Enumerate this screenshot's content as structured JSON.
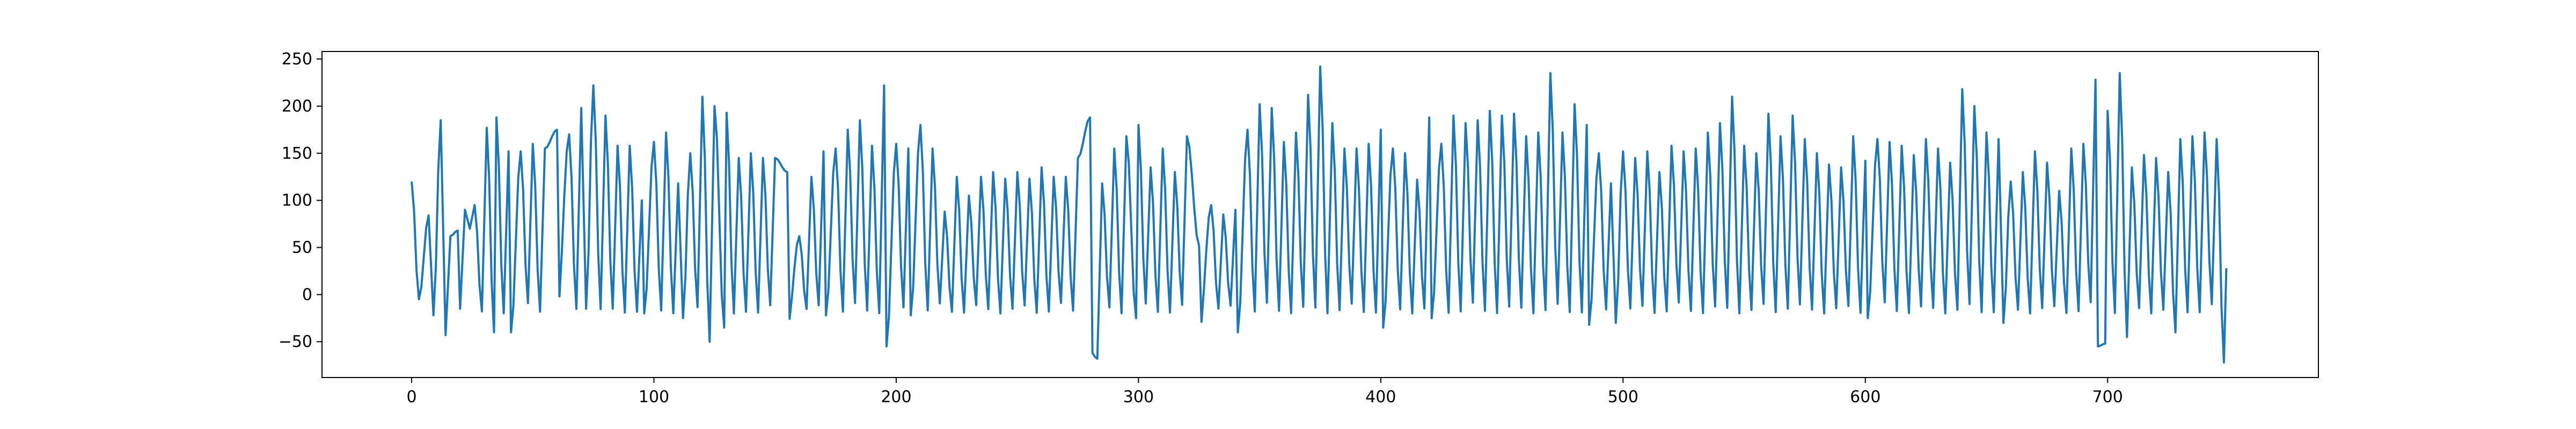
{
  "chart_data": {
    "type": "line",
    "title": "",
    "xlabel": "",
    "ylabel": "",
    "xlim": [
      -37,
      787
    ],
    "ylim": [
      -88,
      258
    ],
    "xticks": [
      0,
      100,
      200,
      300,
      400,
      500,
      600,
      700
    ],
    "yticks": [
      -50,
      0,
      50,
      100,
      150,
      200,
      250
    ],
    "xtick_labels": [
      "0",
      "100",
      "200",
      "300",
      "400",
      "500",
      "600",
      "700"
    ],
    "ytick_labels": [
      "−50",
      "0",
      "50",
      "100",
      "150",
      "200",
      "250"
    ],
    "grid": false,
    "legend": "none",
    "series": [
      {
        "color": "#1f77b4",
        "n_points": 750,
        "start": 120,
        "end": 28,
        "peaks": [
          [
            7,
            84
          ],
          [
            12,
            185
          ],
          [
            16,
            62
          ],
          [
            19,
            68
          ],
          [
            22,
            90
          ],
          [
            24,
            70
          ],
          [
            26,
            95
          ],
          [
            31,
            177
          ],
          [
            35,
            188
          ],
          [
            40,
            152
          ],
          [
            45,
            152
          ],
          [
            50,
            160
          ],
          [
            55,
            155
          ],
          [
            60,
            175
          ],
          [
            65,
            170
          ],
          [
            70,
            198
          ],
          [
            75,
            222
          ],
          [
            80,
            190
          ],
          [
            85,
            158
          ],
          [
            90,
            158
          ],
          [
            95,
            100
          ],
          [
            100,
            162
          ],
          [
            105,
            172
          ],
          [
            110,
            118
          ],
          [
            115,
            150
          ],
          [
            120,
            210
          ],
          [
            125,
            200
          ],
          [
            130,
            193
          ],
          [
            135,
            145
          ],
          [
            140,
            150
          ],
          [
            145,
            145
          ],
          [
            150,
            145
          ],
          [
            155,
            130
          ],
          [
            160,
            62
          ],
          [
            165,
            125
          ],
          [
            170,
            152
          ],
          [
            175,
            155
          ],
          [
            180,
            175
          ],
          [
            185,
            185
          ],
          [
            190,
            158
          ],
          [
            195,
            222
          ],
          [
            200,
            160
          ],
          [
            205,
            155
          ],
          [
            210,
            180
          ],
          [
            215,
            155
          ],
          [
            220,
            88
          ],
          [
            225,
            125
          ],
          [
            230,
            105
          ],
          [
            235,
            125
          ],
          [
            240,
            130
          ],
          [
            245,
            123
          ],
          [
            250,
            130
          ],
          [
            255,
            123
          ],
          [
            260,
            135
          ],
          [
            265,
            125
          ],
          [
            270,
            125
          ],
          [
            275,
            145
          ],
          [
            280,
            188
          ],
          [
            285,
            118
          ],
          [
            290,
            155
          ],
          [
            295,
            168
          ],
          [
            300,
            180
          ],
          [
            305,
            135
          ],
          [
            310,
            155
          ],
          [
            315,
            130
          ],
          [
            320,
            168
          ],
          [
            325,
            52
          ],
          [
            330,
            95
          ],
          [
            335,
            85
          ],
          [
            340,
            90
          ],
          [
            345,
            175
          ],
          [
            350,
            202
          ],
          [
            355,
            198
          ],
          [
            360,
            162
          ],
          [
            365,
            172
          ],
          [
            370,
            212
          ],
          [
            375,
            242
          ],
          [
            380,
            182
          ],
          [
            385,
            155
          ],
          [
            390,
            155
          ],
          [
            395,
            160
          ],
          [
            400,
            175
          ],
          [
            405,
            155
          ],
          [
            410,
            150
          ],
          [
            415,
            122
          ],
          [
            420,
            188
          ],
          [
            425,
            160
          ],
          [
            430,
            190
          ],
          [
            435,
            182
          ],
          [
            440,
            185
          ],
          [
            445,
            195
          ],
          [
            450,
            190
          ],
          [
            455,
            192
          ],
          [
            460,
            168
          ],
          [
            465,
            172
          ],
          [
            470,
            235
          ],
          [
            475,
            172
          ],
          [
            480,
            202
          ],
          [
            485,
            180
          ],
          [
            490,
            150
          ],
          [
            495,
            118
          ],
          [
            500,
            152
          ],
          [
            505,
            145
          ],
          [
            510,
            152
          ],
          [
            515,
            130
          ],
          [
            520,
            158
          ],
          [
            525,
            152
          ],
          [
            530,
            155
          ],
          [
            535,
            172
          ],
          [
            540,
            182
          ],
          [
            545,
            210
          ],
          [
            550,
            158
          ],
          [
            555,
            150
          ],
          [
            560,
            192
          ],
          [
            565,
            168
          ],
          [
            570,
            190
          ],
          [
            575,
            165
          ],
          [
            580,
            150
          ],
          [
            585,
            138
          ],
          [
            590,
            135
          ],
          [
            595,
            168
          ],
          [
            600,
            142
          ],
          [
            605,
            165
          ],
          [
            610,
            162
          ],
          [
            615,
            158
          ],
          [
            620,
            148
          ],
          [
            625,
            165
          ],
          [
            630,
            155
          ],
          [
            635,
            140
          ],
          [
            640,
            218
          ],
          [
            645,
            200
          ],
          [
            650,
            172
          ],
          [
            655,
            165
          ],
          [
            660,
            120
          ],
          [
            665,
            130
          ],
          [
            670,
            152
          ],
          [
            675,
            140
          ],
          [
            680,
            110
          ],
          [
            685,
            155
          ],
          [
            690,
            160
          ],
          [
            695,
            228
          ],
          [
            700,
            195
          ],
          [
            705,
            235
          ],
          [
            710,
            135
          ],
          [
            715,
            148
          ],
          [
            720,
            145
          ],
          [
            725,
            130
          ],
          [
            730,
            165
          ],
          [
            735,
            168
          ],
          [
            740,
            172
          ],
          [
            745,
            165
          ]
        ],
        "troughs": [
          [
            3,
            -5
          ],
          [
            9,
            -22
          ],
          [
            14,
            -43
          ],
          [
            20,
            -15
          ],
          [
            34,
            -40
          ],
          [
            41,
            -40
          ],
          [
            60,
            -20
          ],
          [
            72,
            -15
          ],
          [
            83,
            -15
          ],
          [
            96,
            -20
          ],
          [
            112,
            -25
          ],
          [
            123,
            -50
          ],
          [
            129,
            -35
          ],
          [
            133,
            -20
          ],
          [
            155,
            -35
          ],
          [
            171,
            -22
          ],
          [
            196,
            -55
          ],
          [
            206,
            -22
          ],
          [
            280,
            -60
          ],
          [
            283,
            -68
          ],
          [
            299,
            -25
          ],
          [
            325,
            -42
          ],
          [
            341,
            -40
          ],
          [
            401,
            -35
          ],
          [
            421,
            -25
          ],
          [
            486,
            -32
          ],
          [
            497,
            -30
          ],
          [
            568,
            -15
          ],
          [
            601,
            -25
          ],
          [
            657,
            -30
          ],
          [
            696,
            -55
          ],
          [
            699,
            -52
          ],
          [
            708,
            -45
          ],
          [
            728,
            -40
          ],
          [
            748,
            -72
          ]
        ]
      }
    ]
  }
}
